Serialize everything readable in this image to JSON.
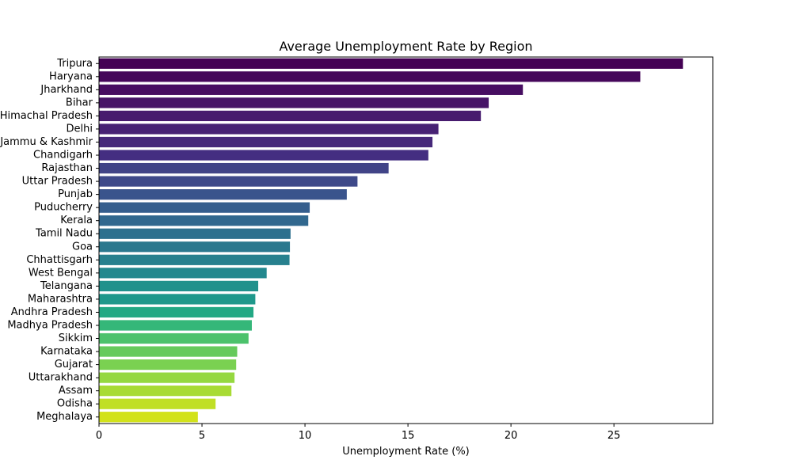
{
  "chart_data": {
    "type": "bar",
    "orientation": "horizontal",
    "title": "Average Unemployment Rate by Region",
    "xlabel": "Unemployment Rate (%)",
    "ylabel": "",
    "xlim": [
      0,
      29.8
    ],
    "xticks": [
      "0",
      "5",
      "10",
      "15",
      "20",
      "25"
    ],
    "xtick_values": [
      0,
      5,
      10,
      15,
      20,
      25
    ],
    "grid": false,
    "palette": "viridis",
    "categories": [
      "Tripura",
      "Haryana",
      "Jharkhand",
      "Bihar",
      "Himachal Pradesh",
      "Delhi",
      "Jammu & Kashmir",
      "Chandigarh",
      "Rajasthan",
      "Uttar Pradesh",
      "Punjab",
      "Puducherry",
      "Kerala",
      "Tamil Nadu",
      "Goa",
      "Chhattisgarh",
      "West Bengal",
      "Telangana",
      "Maharashtra",
      "Andhra Pradesh",
      "Madhya Pradesh",
      "Sikkim",
      "Karnataka",
      "Gujarat",
      "Uttarakhand",
      "Assam",
      "Odisha",
      "Meghalaya"
    ],
    "values": [
      28.35,
      26.28,
      20.58,
      18.92,
      18.54,
      16.48,
      16.19,
      15.99,
      14.06,
      12.55,
      12.03,
      10.23,
      10.16,
      9.3,
      9.27,
      9.25,
      8.14,
      7.73,
      7.59,
      7.5,
      7.42,
      7.26,
      6.71,
      6.66,
      6.58,
      6.43,
      5.66,
      4.8
    ],
    "colors": [
      "#440154",
      "#45075a",
      "#470e61",
      "#471567",
      "#471b6e",
      "#472274",
      "#46287a",
      "#442e81",
      "#414487",
      "#3e4989",
      "#3a548c",
      "#355e8d",
      "#31688e",
      "#2d708e",
      "#2a788e",
      "#27808e",
      "#23888e",
      "#21918c",
      "#1f988b",
      "#22a884",
      "#35b779",
      "#4cc26c",
      "#66ca5c",
      "#7ad151",
      "#95d840",
      "#a8db34",
      "#c0df25",
      "#d2e21b"
    ]
  }
}
